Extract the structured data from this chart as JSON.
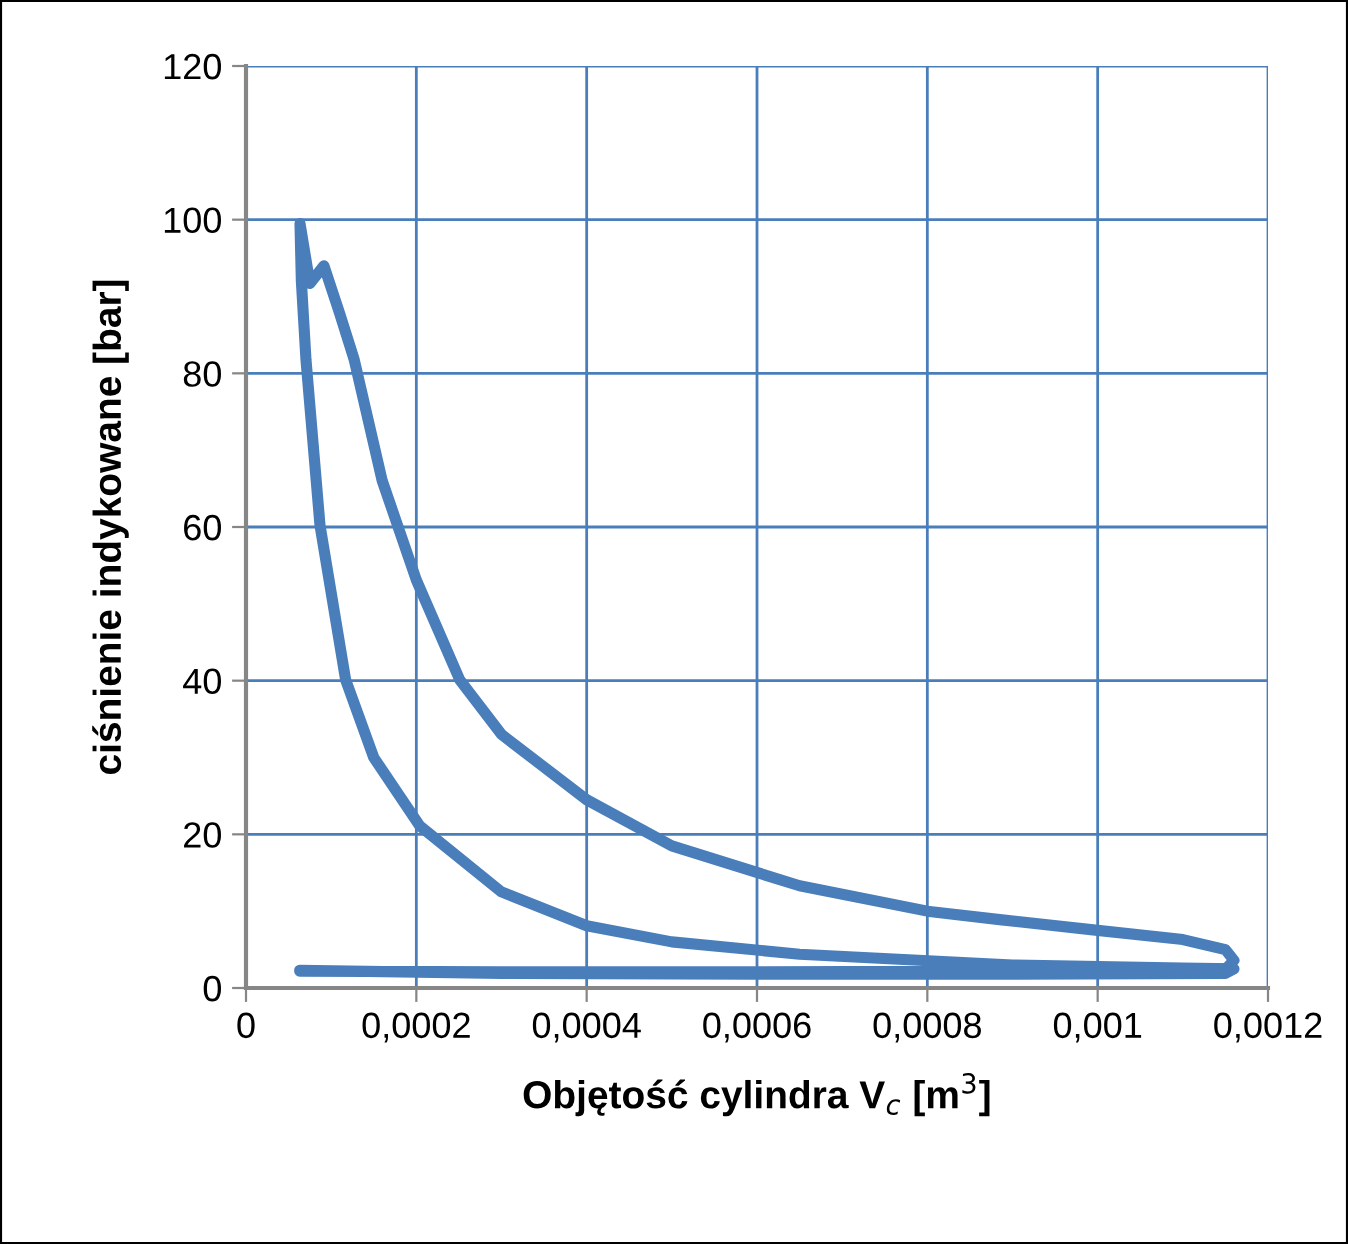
{
  "chart_data": {
    "type": "line",
    "xlabel": "Objętość cylindra V$_{c}$ [m$^{3}$]",
    "ylabel": "ciśnienie indykowane [bar]",
    "series": [
      {
        "color": "#4a7ebb",
        "x": [
          6.3e-05,
          0.0003,
          0.0006,
          0.0009,
          0.00115,
          0.00116,
          0.0011,
          0.0009,
          0.00065,
          0.0005,
          0.0004,
          0.0003,
          0.000204,
          0.00015,
          0.000117,
          8.69e-05,
          7.04e-05,
          6.5e-05,
          6.34e-05,
          7.5e-05,
          9.15e-05,
          0.00011,
          0.000127,
          0.00016,
          0.0002,
          0.000251,
          0.0003,
          0.0004,
          0.0005,
          0.00065,
          0.0008,
          0.000885,
          0.001,
          0.0011,
          0.00115,
          0.00116,
          0.00115,
          0.0009,
          0.0006,
          0.0003,
          6.3e-05
        ],
        "values": [
          2.3,
          1.9,
          1.8,
          1.8,
          1.9,
          2.5,
          2.6,
          3.0,
          4.4,
          6.0,
          8.1,
          12.5,
          21.1,
          30,
          40.1,
          60.2,
          81.8,
          92,
          99.5,
          91.7,
          94.0,
          87.8,
          81.8,
          66,
          53.1,
          40.1,
          33,
          24.5,
          18.5,
          13.3,
          10,
          8.9,
          7.5,
          6.3,
          5,
          3.6,
          2.4,
          2.2,
          2.1,
          2.1,
          2.2
        ]
      }
    ],
    "xlim": [
      0,
      0.0012
    ],
    "xticks": [
      0,
      {
        "value": 0.0002,
        "label": "0,0002"
      },
      {
        "value": 0.0004,
        "label": "0,0004"
      },
      {
        "value": 0.0006,
        "label": "0,0006"
      },
      {
        "value": 0.0008,
        "label": "0,0008"
      },
      {
        "value": 0.001,
        "label": "0,001"
      },
      {
        "value": 0.0012,
        "label": "0,0012"
      }
    ],
    "ylim": [
      0,
      120
    ],
    "yticks": [
      0,
      20,
      40,
      60,
      80,
      100,
      120
    ],
    "grid": true,
    "legend": false,
    "marker": "none",
    "line_style": "solid"
  }
}
